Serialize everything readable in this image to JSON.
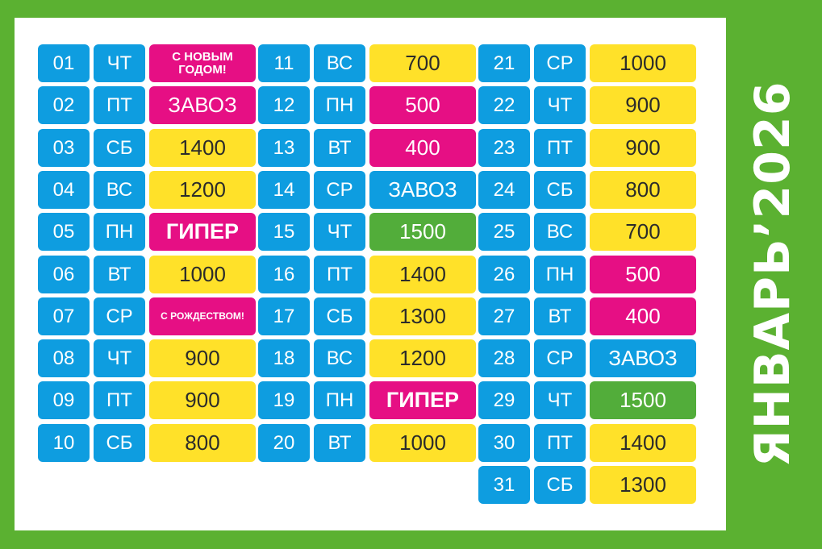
{
  "title": "ЯНВАРЬ’2026",
  "colors": {
    "frame": "#5bb131",
    "blue": "#0e9de0",
    "yellow": "#ffe129",
    "pink": "#e60f84",
    "green": "#52ad3a"
  },
  "columns": [
    [
      {
        "day": "01",
        "dow": "ЧТ",
        "value": "С НОВЫМ ГОДОМ!",
        "color": "pink",
        "style": "small"
      },
      {
        "day": "02",
        "dow": "ПТ",
        "value": "ЗАВОЗ",
        "color": "pink"
      },
      {
        "day": "03",
        "dow": "СБ",
        "value": "1400",
        "color": "yellow"
      },
      {
        "day": "04",
        "dow": "ВС",
        "value": "1200",
        "color": "yellow"
      },
      {
        "day": "05",
        "dow": "ПН",
        "value": "ГИПЕР",
        "color": "pink",
        "style": "hyper"
      },
      {
        "day": "06",
        "dow": "ВТ",
        "value": "1000",
        "color": "yellow"
      },
      {
        "day": "07",
        "dow": "СР",
        "value": "С РОЖДЕСТВОМ!",
        "color": "pink",
        "style": "tiny"
      },
      {
        "day": "08",
        "dow": "ЧТ",
        "value": "900",
        "color": "yellow"
      },
      {
        "day": "09",
        "dow": "ПТ",
        "value": "900",
        "color": "yellow"
      },
      {
        "day": "10",
        "dow": "СБ",
        "value": "800",
        "color": "yellow"
      }
    ],
    [
      {
        "day": "11",
        "dow": "ВС",
        "value": "700",
        "color": "yellow"
      },
      {
        "day": "12",
        "dow": "ПН",
        "value": "500",
        "color": "pink"
      },
      {
        "day": "13",
        "dow": "ВТ",
        "value": "400",
        "color": "pink"
      },
      {
        "day": "14",
        "dow": "СР",
        "value": "ЗАВОЗ",
        "color": "blue"
      },
      {
        "day": "15",
        "dow": "ЧТ",
        "value": "1500",
        "color": "green"
      },
      {
        "day": "16",
        "dow": "ПТ",
        "value": "1400",
        "color": "yellow"
      },
      {
        "day": "17",
        "dow": "СБ",
        "value": "1300",
        "color": "yellow"
      },
      {
        "day": "18",
        "dow": "ВС",
        "value": "1200",
        "color": "yellow"
      },
      {
        "day": "19",
        "dow": "ПН",
        "value": "ГИПЕР",
        "color": "pink",
        "style": "hyper"
      },
      {
        "day": "20",
        "dow": "ВТ",
        "value": "1000",
        "color": "yellow"
      }
    ],
    [
      {
        "day": "21",
        "dow": "СР",
        "value": "1000",
        "color": "yellow"
      },
      {
        "day": "22",
        "dow": "ЧТ",
        "value": "900",
        "color": "yellow"
      },
      {
        "day": "23",
        "dow": "ПТ",
        "value": "900",
        "color": "yellow"
      },
      {
        "day": "24",
        "dow": "СБ",
        "value": "800",
        "color": "yellow"
      },
      {
        "day": "25",
        "dow": "ВС",
        "value": "700",
        "color": "yellow"
      },
      {
        "day": "26",
        "dow": "ПН",
        "value": "500",
        "color": "pink"
      },
      {
        "day": "27",
        "dow": "ВТ",
        "value": "400",
        "color": "pink"
      },
      {
        "day": "28",
        "dow": "СР",
        "value": "ЗАВОЗ",
        "color": "blue"
      },
      {
        "day": "29",
        "dow": "ЧТ",
        "value": "1500",
        "color": "green"
      },
      {
        "day": "30",
        "dow": "ПТ",
        "value": "1400",
        "color": "yellow"
      },
      {
        "day": "31",
        "dow": "СБ",
        "value": "1300",
        "color": "yellow"
      }
    ]
  ]
}
